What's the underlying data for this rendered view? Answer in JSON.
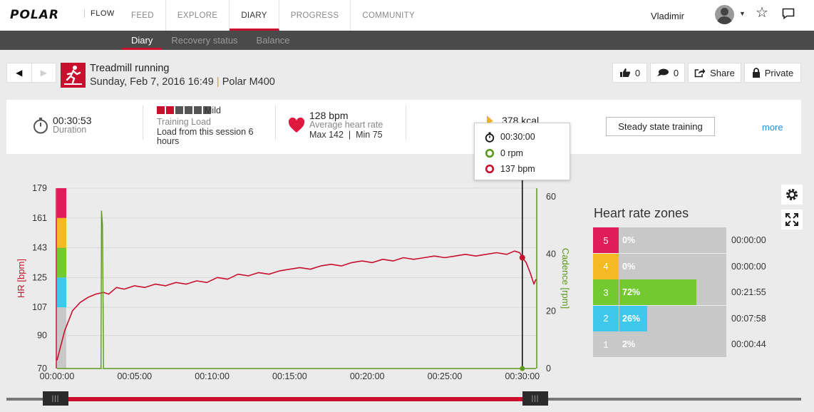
{
  "brand": {
    "logo": "POLAR",
    "product": "FLOW"
  },
  "nav": {
    "items": [
      "FEED",
      "EXPLORE",
      "DIARY",
      "PROGRESS",
      "COMMUNITY"
    ],
    "active": "DIARY",
    "user_name": "Vladimir"
  },
  "subnav": {
    "items": [
      "Diary",
      "Recovery status",
      "Balance"
    ],
    "active": "Diary"
  },
  "session": {
    "sport": "Treadmill running",
    "date": "Sunday, Feb 7, 2016 16:49",
    "separator": "|",
    "device": "Polar M400",
    "likes": "0",
    "comments": "0",
    "share_label": "Share",
    "privacy_label": "Private"
  },
  "summary": {
    "duration": "00:30:53",
    "duration_label": "Duration",
    "training_load_level": "Mild",
    "training_load_squares": {
      "filled": 2,
      "total": 6
    },
    "training_load_label": "Training Load",
    "training_load_line1": "Load from this session 6",
    "training_load_line2": "hours",
    "avg_hr": "128 bpm",
    "avg_hr_label": "Average heart rate",
    "max_min": "Max 142  |  Min 75",
    "calories": "378 kcal",
    "benefit_button": "Steady state training",
    "more_link": "more"
  },
  "tooltip": {
    "time": "00:30:00",
    "cadence": "0 rpm",
    "hr": "137 bpm"
  },
  "chart_data": {
    "type": "line",
    "xlabel": "",
    "ylabel": "HR [bpm]",
    "y2label": "Cadence [rpm]",
    "x_ticks": [
      "00:00:00",
      "00:05:00",
      "00:10:00",
      "00:15:00",
      "00:20:00",
      "00:25:00",
      "00:30:00"
    ],
    "x_range_seconds": [
      0,
      1853
    ],
    "y_ticks": [
      179,
      161,
      143,
      125,
      107,
      90,
      70
    ],
    "ylim": [
      70,
      179
    ],
    "y2_ticks": [
      60,
      40,
      20,
      0
    ],
    "y2lim": [
      0,
      63
    ],
    "grid": true,
    "cursor_time_seconds": 1800,
    "cursor_hr": 137,
    "hr_zone_colors": [
      "#c8c8c8",
      "#3ec8ec",
      "#72c930",
      "#f5b923",
      "#e11c5b"
    ],
    "series": [
      {
        "color": "#c8102e",
        "axis": "left",
        "points": [
          [
            0,
            75
          ],
          [
            30,
            93
          ],
          [
            60,
            105
          ],
          [
            90,
            110
          ],
          [
            120,
            113
          ],
          [
            150,
            115
          ],
          [
            180,
            116
          ],
          [
            200,
            115
          ],
          [
            230,
            119
          ],
          [
            260,
            118
          ],
          [
            300,
            120
          ],
          [
            340,
            119
          ],
          [
            380,
            121
          ],
          [
            420,
            120
          ],
          [
            460,
            122
          ],
          [
            500,
            121
          ],
          [
            540,
            123
          ],
          [
            580,
            122
          ],
          [
            620,
            125
          ],
          [
            660,
            124
          ],
          [
            700,
            127
          ],
          [
            740,
            126
          ],
          [
            780,
            128
          ],
          [
            820,
            127
          ],
          [
            860,
            129
          ],
          [
            900,
            130
          ],
          [
            940,
            131
          ],
          [
            980,
            130
          ],
          [
            1020,
            132
          ],
          [
            1060,
            133
          ],
          [
            1100,
            132
          ],
          [
            1140,
            134
          ],
          [
            1180,
            135
          ],
          [
            1220,
            134
          ],
          [
            1260,
            136
          ],
          [
            1300,
            135
          ],
          [
            1340,
            137
          ],
          [
            1380,
            136
          ],
          [
            1420,
            137
          ],
          [
            1460,
            138
          ],
          [
            1500,
            137
          ],
          [
            1540,
            138
          ],
          [
            1580,
            139
          ],
          [
            1620,
            138
          ],
          [
            1660,
            139
          ],
          [
            1700,
            140
          ],
          [
            1740,
            139
          ],
          [
            1770,
            141
          ],
          [
            1790,
            140
          ],
          [
            1800,
            137
          ],
          [
            1815,
            134
          ],
          [
            1830,
            128
          ],
          [
            1845,
            121
          ],
          [
            1853,
            124
          ]
        ]
      },
      {
        "color": "#5a9a1c",
        "axis": "right",
        "points": [
          [
            0,
            0
          ],
          [
            170,
            0
          ],
          [
            172,
            55
          ],
          [
            176,
            50
          ],
          [
            180,
            0
          ],
          [
            1853,
            0
          ]
        ]
      }
    ]
  },
  "zones": {
    "title": "Heart rate zones",
    "rows": [
      {
        "zone": "5",
        "percent": "0%",
        "fraction": 0,
        "time": "00:00:00",
        "color": "#e11c5b"
      },
      {
        "zone": "4",
        "percent": "0%",
        "fraction": 0,
        "time": "00:00:00",
        "color": "#f5b923"
      },
      {
        "zone": "3",
        "percent": "72%",
        "fraction": 0.72,
        "time": "00:21:55",
        "color": "#72c930"
      },
      {
        "zone": "2",
        "percent": "26%",
        "fraction": 0.26,
        "time": "00:07:58",
        "color": "#3ec8ec"
      },
      {
        "zone": "1",
        "percent": "2%",
        "fraction": 0.02,
        "time": "00:00:44",
        "color": "#c8c8c8"
      }
    ]
  },
  "slider": {
    "handle_glyph": "|||",
    "range_fraction": [
      0,
      1
    ]
  }
}
